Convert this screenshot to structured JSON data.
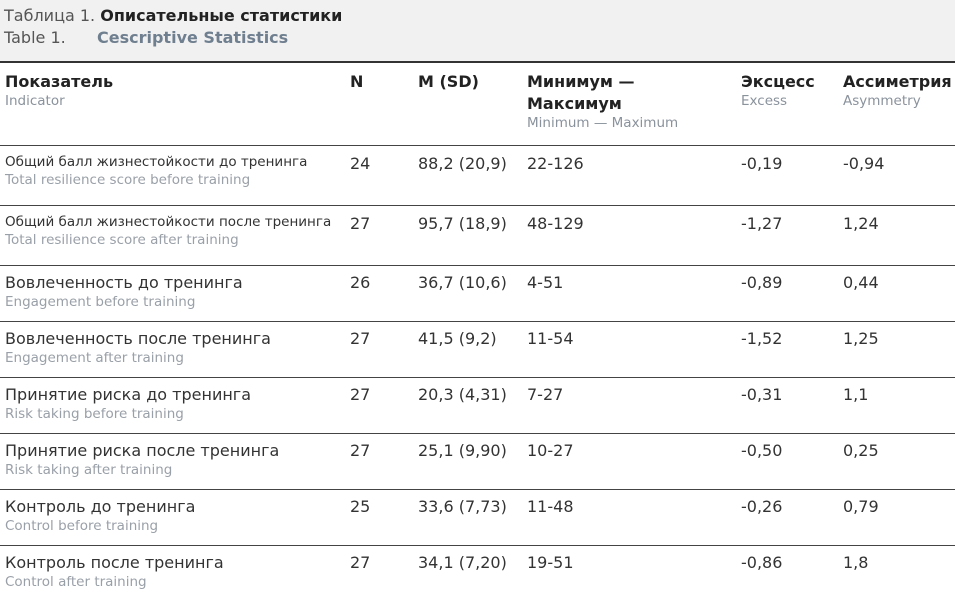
{
  "caption": {
    "ru_prefix": "Таблица 1.",
    "ru_title": "Описательные статистики",
    "en_prefix": "Table 1.",
    "en_title": "Cescriptive Statistics"
  },
  "headers": [
    {
      "ru": "Показатель",
      "en": "Indicator"
    },
    {
      "ru": "N",
      "en": ""
    },
    {
      "ru": "M (SD)",
      "en": ""
    },
    {
      "ru": "Минимум — Максимум",
      "en": "Minimum — Maximum"
    },
    {
      "ru": "Эксцесс",
      "en": "Excess"
    },
    {
      "ru": "Ассиметрия",
      "en": "Asymmetry"
    }
  ],
  "rows": [
    {
      "ru": "Общий балл жизнестойкости до тренинга",
      "en": "Total resilience score before training",
      "n": "24",
      "msd": "88,2 (20,9)",
      "range": "22-126",
      "excess": "-0,19",
      "asym": "-0,94"
    },
    {
      "ru": "Общий балл жизнестойкости после тренинга",
      "en": "Total resilience score after training",
      "n": "27",
      "msd": "95,7 (18,9)",
      "range": "48-129",
      "excess": "-1,27",
      "asym": "1,24"
    },
    {
      "ru": "Вовлеченность до тренинга",
      "en": "Engagement before training",
      "n": "26",
      "msd": "36,7 (10,6)",
      "range": "4-51",
      "excess": "-0,89",
      "asym": "0,44"
    },
    {
      "ru": "Вовлеченность после тренинга",
      "en": "Engagement after training",
      "n": "27",
      "msd": "41,5 (9,2)",
      "range": "11-54",
      "excess": "-1,52",
      "asym": "1,25"
    },
    {
      "ru": "Принятие риска до тренинга",
      "en": "Risk taking before training",
      "n": "27",
      "msd": "20,3 (4,31)",
      "range": "7-27",
      "excess": "-0,31",
      "asym": "1,1"
    },
    {
      "ru": "Принятие риска после тренинга",
      "en": "Risk taking after training",
      "n": "27",
      "msd": "25,1 (9,90)",
      "range": "10-27",
      "excess": "-0,50",
      "asym": "0,25"
    },
    {
      "ru": "Контроль до тренинга",
      "en": "Control before training",
      "n": "25",
      "msd": "33,6 (7,73)",
      "range": "11-48",
      "excess": "-0,26",
      "asym": "0,79"
    },
    {
      "ru": "Контроль после тренинга",
      "en": "Control after training",
      "n": "27",
      "msd": "34,1 (7,20)",
      "range": "19-51",
      "excess": "-0,86",
      "asym": "1,8"
    }
  ]
}
